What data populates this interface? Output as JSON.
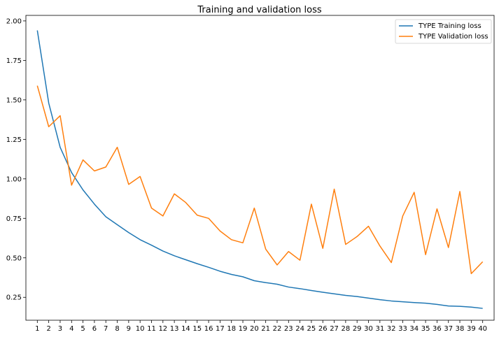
{
  "chart_data": {
    "type": "line",
    "title": "Training and validation loss",
    "xlabel": "",
    "ylabel": "",
    "x": [
      1,
      2,
      3,
      4,
      5,
      6,
      7,
      8,
      9,
      10,
      11,
      12,
      13,
      14,
      15,
      16,
      17,
      18,
      19,
      20,
      21,
      22,
      23,
      24,
      25,
      26,
      27,
      28,
      29,
      30,
      31,
      32,
      33,
      34,
      35,
      36,
      37,
      38,
      39,
      40
    ],
    "xlim": [
      0.0,
      41.0
    ],
    "ylim": [
      0.105,
      2.035
    ],
    "yticks": [
      0.25,
      0.5,
      0.75,
      1.0,
      1.25,
      1.5,
      1.75,
      2.0
    ],
    "ytick_labels": [
      "0.25",
      "0.50",
      "0.75",
      "1.00",
      "1.25",
      "1.50",
      "1.75",
      "2.00"
    ],
    "grid": false,
    "legend_position": "top-right",
    "series": [
      {
        "name": "TYPE Training loss",
        "color": "#1f77b4",
        "values": [
          1.94,
          1.48,
          1.2,
          1.04,
          0.93,
          0.84,
          0.76,
          0.71,
          0.66,
          0.615,
          0.58,
          0.543,
          0.513,
          0.488,
          0.463,
          0.44,
          0.415,
          0.395,
          0.38,
          0.355,
          0.343,
          0.333,
          0.315,
          0.305,
          0.293,
          0.282,
          0.272,
          0.262,
          0.255,
          0.245,
          0.235,
          0.227,
          0.222,
          0.217,
          0.213,
          0.205,
          0.195,
          0.193,
          0.188,
          0.18
        ]
      },
      {
        "name": "TYPE Validation loss",
        "color": "#ff7f0e",
        "values": [
          1.59,
          1.33,
          1.4,
          0.96,
          1.12,
          1.05,
          1.075,
          1.2,
          0.965,
          1.015,
          0.815,
          0.765,
          0.905,
          0.85,
          0.77,
          0.75,
          0.67,
          0.615,
          0.595,
          0.815,
          0.555,
          0.455,
          0.54,
          0.485,
          0.84,
          0.56,
          0.935,
          0.585,
          0.635,
          0.7,
          0.575,
          0.47,
          0.765,
          0.915,
          0.52,
          0.81,
          0.565,
          0.92,
          0.4,
          0.475
        ]
      }
    ]
  }
}
